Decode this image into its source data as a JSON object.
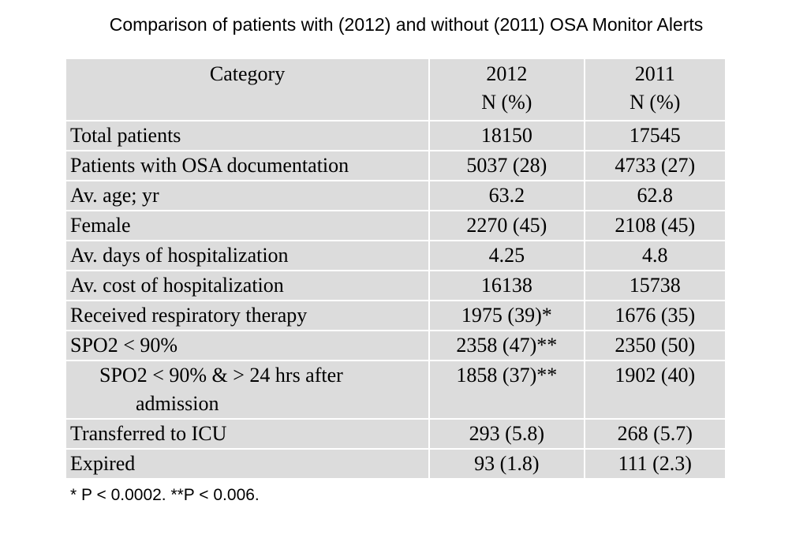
{
  "title": "Comparison of patients with (2012) and without (2011) OSA Monitor Alerts",
  "table": {
    "headers": [
      {
        "line1": "Category",
        "line2": ""
      },
      {
        "line1": "2012",
        "line2": "N (%)"
      },
      {
        "line1": "2011",
        "line2": "N (%)"
      }
    ],
    "rows": [
      {
        "label": "Total patients",
        "label_cont": "",
        "v2012": "18150",
        "v2011": "17545",
        "indent": 0
      },
      {
        "label": "Patients with OSA documentation",
        "label_cont": "",
        "v2012": "5037 (28)",
        "v2011": "4733 (27)",
        "indent": 1
      },
      {
        "label": "Av. age; yr",
        "label_cont": "",
        "v2012": "63.2",
        "v2011": "62.8",
        "indent": 2
      },
      {
        "label": "Female",
        "label_cont": "",
        "v2012": "2270 (45)",
        "v2011": "2108 (45)",
        "indent": 2
      },
      {
        "label": "Av. days of hospitalization",
        "label_cont": "",
        "v2012": "4.25",
        "v2011": "4.8",
        "indent": 2
      },
      {
        "label": "Av. cost of hospitalization",
        "label_cont": "",
        "v2012": "16138",
        "v2011": "15738",
        "indent": 2
      },
      {
        "label": "Received respiratory therapy",
        "label_cont": "",
        "v2012": "1975 (39)*",
        "v2011": "1676 (35)",
        "indent": 2
      },
      {
        "label": "SPO2 < 90%",
        "label_cont": "",
        "v2012": "2358 (47)**",
        "v2011": "2350 (50)",
        "indent": 2
      },
      {
        "label": "SPO2 < 90% & > 24 hrs after",
        "label_cont": "admission",
        "v2012": "1858 (37)**",
        "v2011": "1902 (40)",
        "indent": 2
      },
      {
        "label": "Transferred to ICU",
        "label_cont": "",
        "v2012": "293 (5.8)",
        "v2011": "268 (5.7)",
        "indent": 2
      },
      {
        "label": "Expired",
        "label_cont": "",
        "v2012": "93 (1.8)",
        "v2011": "111 (2.3)",
        "indent": 2
      }
    ]
  },
  "footnote": "* P < 0.0002. **P < 0.006."
}
